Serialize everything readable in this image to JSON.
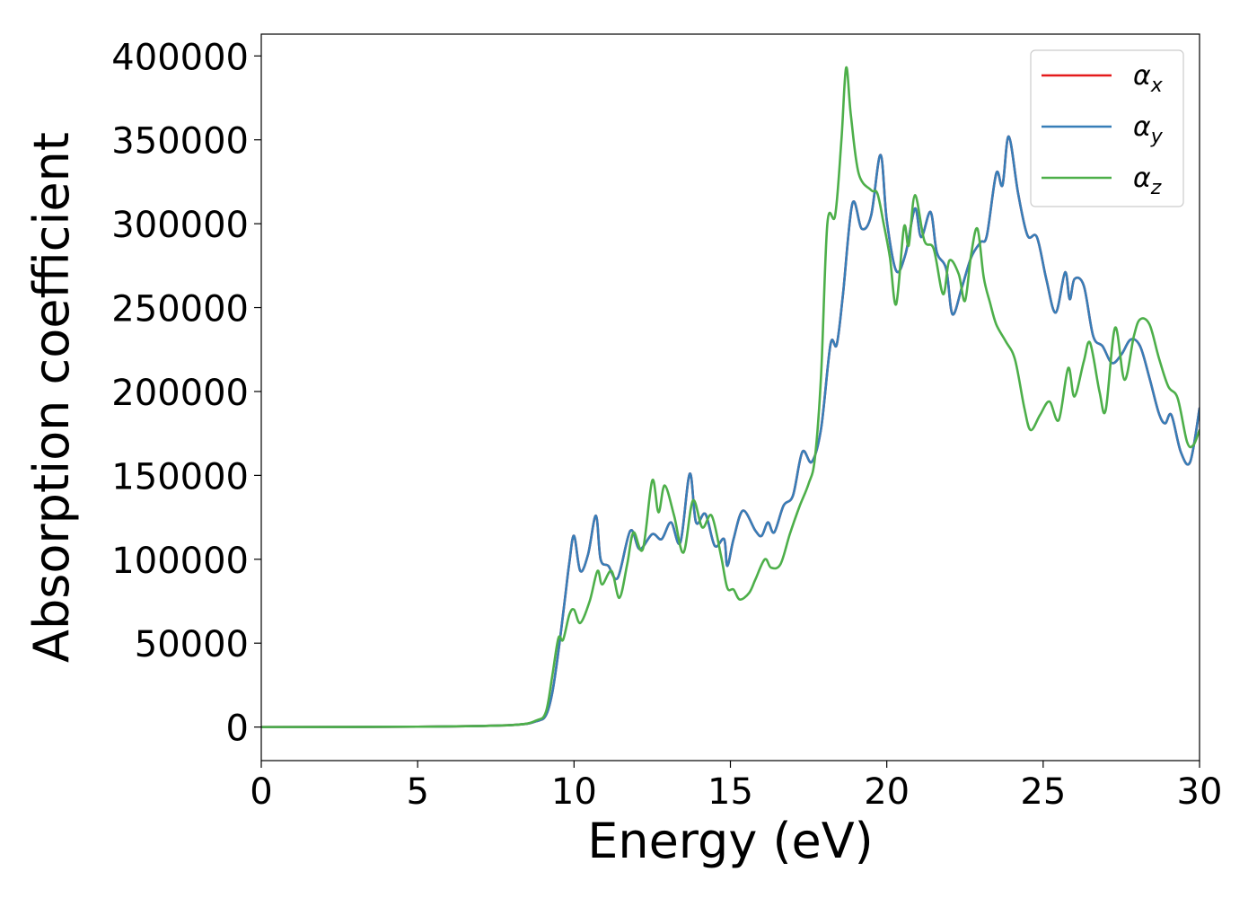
{
  "chart_data": {
    "type": "line",
    "xlabel": "Energy (eV)",
    "ylabel": "Absorption coefficient",
    "xlim": [
      0,
      30
    ],
    "ylim": [
      -20000,
      413000
    ],
    "xticks": [
      0,
      5,
      10,
      15,
      20,
      25,
      30
    ],
    "xtick_labels": [
      "0",
      "5",
      "10",
      "15",
      "20",
      "25",
      "30"
    ],
    "yticks": [
      0,
      50000,
      100000,
      150000,
      200000,
      250000,
      300000,
      350000,
      400000
    ],
    "ytick_labels": [
      "0",
      "50000",
      "100000",
      "150000",
      "200000",
      "250000",
      "300000",
      "350000",
      "400000"
    ],
    "grid": false,
    "legend_position": "top-right",
    "series": [
      {
        "name": "α_x",
        "legend_main": "α",
        "legend_sub": "x",
        "color": "#e41a1c",
        "points": [
          [
            0,
            0
          ],
          [
            5,
            200
          ],
          [
            8,
            1200
          ],
          [
            8.8,
            3500
          ],
          [
            9.1,
            7000
          ],
          [
            9.3,
            20000
          ],
          [
            9.5,
            45000
          ],
          [
            9.7,
            75000
          ],
          [
            9.85,
            98000
          ],
          [
            10.0,
            114000
          ],
          [
            10.2,
            93000
          ],
          [
            10.45,
            103000
          ],
          [
            10.7,
            126000
          ],
          [
            10.85,
            100000
          ],
          [
            11.1,
            96000
          ],
          [
            11.4,
            89000
          ],
          [
            11.8,
            117000
          ],
          [
            12.1,
            106000
          ],
          [
            12.5,
            115000
          ],
          [
            12.8,
            112000
          ],
          [
            13.1,
            122000
          ],
          [
            13.4,
            110000
          ],
          [
            13.7,
            151000
          ],
          [
            13.9,
            122000
          ],
          [
            14.2,
            127000
          ],
          [
            14.5,
            108000
          ],
          [
            14.8,
            112000
          ],
          [
            14.9,
            96000
          ],
          [
            15.1,
            112000
          ],
          [
            15.4,
            129000
          ],
          [
            15.8,
            117000
          ],
          [
            16.0,
            114000
          ],
          [
            16.2,
            122000
          ],
          [
            16.4,
            116000
          ],
          [
            16.7,
            132000
          ],
          [
            17.0,
            138000
          ],
          [
            17.3,
            164000
          ],
          [
            17.6,
            158000
          ],
          [
            17.9,
            178000
          ],
          [
            18.2,
            228000
          ],
          [
            18.4,
            228000
          ],
          [
            18.6,
            258000
          ],
          [
            18.9,
            312000
          ],
          [
            19.2,
            297000
          ],
          [
            19.5,
            305000
          ],
          [
            19.8,
            341000
          ],
          [
            20.0,
            302000
          ],
          [
            20.3,
            272000
          ],
          [
            20.6,
            282000
          ],
          [
            20.9,
            309000
          ],
          [
            21.1,
            292000
          ],
          [
            21.4,
            307000
          ],
          [
            21.6,
            283000
          ],
          [
            21.9,
            273000
          ],
          [
            22.1,
            246000
          ],
          [
            22.4,
            262000
          ],
          [
            22.7,
            280000
          ],
          [
            23.0,
            289000
          ],
          [
            23.2,
            293000
          ],
          [
            23.5,
            330000
          ],
          [
            23.7,
            323000
          ],
          [
            23.9,
            352000
          ],
          [
            24.2,
            318000
          ],
          [
            24.5,
            293000
          ],
          [
            24.8,
            292000
          ],
          [
            25.1,
            267000
          ],
          [
            25.4,
            247000
          ],
          [
            25.7,
            271000
          ],
          [
            25.85,
            255000
          ],
          [
            26.0,
            267000
          ],
          [
            26.3,
            263000
          ],
          [
            26.6,
            233000
          ],
          [
            26.9,
            227000
          ],
          [
            27.2,
            217000
          ],
          [
            27.5,
            222000
          ],
          [
            27.8,
            231000
          ],
          [
            28.1,
            227000
          ],
          [
            28.4,
            208000
          ],
          [
            28.7,
            187000
          ],
          [
            28.9,
            181000
          ],
          [
            29.1,
            186000
          ],
          [
            29.4,
            164000
          ],
          [
            29.7,
            158000
          ],
          [
            30.0,
            190000
          ]
        ]
      },
      {
        "name": "α_y",
        "legend_main": "α",
        "legend_sub": "y",
        "color": "#377eb8",
        "points": [
          [
            0,
            0
          ],
          [
            5,
            200
          ],
          [
            8,
            1200
          ],
          [
            8.8,
            3500
          ],
          [
            9.1,
            7000
          ],
          [
            9.3,
            20000
          ],
          [
            9.5,
            45000
          ],
          [
            9.7,
            75000
          ],
          [
            9.85,
            98000
          ],
          [
            10.0,
            114000
          ],
          [
            10.2,
            93000
          ],
          [
            10.45,
            103000
          ],
          [
            10.7,
            126000
          ],
          [
            10.85,
            100000
          ],
          [
            11.1,
            96000
          ],
          [
            11.4,
            89000
          ],
          [
            11.8,
            117000
          ],
          [
            12.1,
            106000
          ],
          [
            12.5,
            115000
          ],
          [
            12.8,
            112000
          ],
          [
            13.1,
            122000
          ],
          [
            13.4,
            110000
          ],
          [
            13.7,
            151000
          ],
          [
            13.9,
            122000
          ],
          [
            14.2,
            127000
          ],
          [
            14.5,
            108000
          ],
          [
            14.8,
            112000
          ],
          [
            14.9,
            96000
          ],
          [
            15.1,
            112000
          ],
          [
            15.4,
            129000
          ],
          [
            15.8,
            117000
          ],
          [
            16.0,
            114000
          ],
          [
            16.2,
            122000
          ],
          [
            16.4,
            116000
          ],
          [
            16.7,
            132000
          ],
          [
            17.0,
            138000
          ],
          [
            17.3,
            164000
          ],
          [
            17.6,
            158000
          ],
          [
            17.9,
            178000
          ],
          [
            18.2,
            228000
          ],
          [
            18.4,
            228000
          ],
          [
            18.6,
            258000
          ],
          [
            18.9,
            312000
          ],
          [
            19.2,
            297000
          ],
          [
            19.5,
            305000
          ],
          [
            19.8,
            341000
          ],
          [
            20.0,
            302000
          ],
          [
            20.3,
            272000
          ],
          [
            20.6,
            282000
          ],
          [
            20.9,
            309000
          ],
          [
            21.1,
            292000
          ],
          [
            21.4,
            307000
          ],
          [
            21.6,
            283000
          ],
          [
            21.9,
            273000
          ],
          [
            22.1,
            246000
          ],
          [
            22.4,
            262000
          ],
          [
            22.7,
            280000
          ],
          [
            23.0,
            289000
          ],
          [
            23.2,
            293000
          ],
          [
            23.5,
            330000
          ],
          [
            23.7,
            323000
          ],
          [
            23.9,
            352000
          ],
          [
            24.2,
            318000
          ],
          [
            24.5,
            293000
          ],
          [
            24.8,
            292000
          ],
          [
            25.1,
            267000
          ],
          [
            25.4,
            247000
          ],
          [
            25.7,
            271000
          ],
          [
            25.85,
            255000
          ],
          [
            26.0,
            267000
          ],
          [
            26.3,
            263000
          ],
          [
            26.6,
            233000
          ],
          [
            26.9,
            227000
          ],
          [
            27.2,
            217000
          ],
          [
            27.5,
            222000
          ],
          [
            27.8,
            231000
          ],
          [
            28.1,
            227000
          ],
          [
            28.4,
            208000
          ],
          [
            28.7,
            187000
          ],
          [
            28.9,
            181000
          ],
          [
            29.1,
            186000
          ],
          [
            29.4,
            164000
          ],
          [
            29.7,
            158000
          ],
          [
            30.0,
            190000
          ]
        ]
      },
      {
        "name": "α_z",
        "legend_main": "α",
        "legend_sub": "z",
        "color": "#4daf4a",
        "points": [
          [
            0,
            0
          ],
          [
            5,
            200
          ],
          [
            8,
            1200
          ],
          [
            8.8,
            4000
          ],
          [
            9.1,
            9000
          ],
          [
            9.3,
            30000
          ],
          [
            9.5,
            53000
          ],
          [
            9.65,
            52000
          ],
          [
            9.85,
            67000
          ],
          [
            10.0,
            70000
          ],
          [
            10.2,
            62000
          ],
          [
            10.5,
            75000
          ],
          [
            10.75,
            93000
          ],
          [
            10.9,
            85000
          ],
          [
            11.2,
            93000
          ],
          [
            11.45,
            77000
          ],
          [
            11.7,
            97000
          ],
          [
            11.9,
            116000
          ],
          [
            12.2,
            106000
          ],
          [
            12.5,
            147000
          ],
          [
            12.7,
            128000
          ],
          [
            12.9,
            144000
          ],
          [
            13.2,
            126000
          ],
          [
            13.5,
            104000
          ],
          [
            13.8,
            135000
          ],
          [
            14.1,
            119000
          ],
          [
            14.4,
            126000
          ],
          [
            14.7,
            102000
          ],
          [
            14.9,
            83000
          ],
          [
            15.1,
            82000
          ],
          [
            15.3,
            76000
          ],
          [
            15.6,
            80000
          ],
          [
            15.8,
            88000
          ],
          [
            16.1,
            100000
          ],
          [
            16.3,
            95000
          ],
          [
            16.6,
            97000
          ],
          [
            16.9,
            115000
          ],
          [
            17.2,
            131000
          ],
          [
            17.5,
            145000
          ],
          [
            17.7,
            160000
          ],
          [
            17.9,
            210000
          ],
          [
            18.1,
            300000
          ],
          [
            18.35,
            305000
          ],
          [
            18.55,
            350000
          ],
          [
            18.7,
            393000
          ],
          [
            18.85,
            365000
          ],
          [
            19.1,
            330000
          ],
          [
            19.5,
            320000
          ],
          [
            19.7,
            318000
          ],
          [
            19.9,
            300000
          ],
          [
            20.1,
            280000
          ],
          [
            20.3,
            252000
          ],
          [
            20.55,
            298000
          ],
          [
            20.7,
            287000
          ],
          [
            20.9,
            317000
          ],
          [
            21.2,
            290000
          ],
          [
            21.5,
            285000
          ],
          [
            21.8,
            258000
          ],
          [
            22.0,
            278000
          ],
          [
            22.3,
            270000
          ],
          [
            22.5,
            254000
          ],
          [
            22.7,
            282000
          ],
          [
            22.9,
            297000
          ],
          [
            23.1,
            268000
          ],
          [
            23.3,
            253000
          ],
          [
            23.5,
            240000
          ],
          [
            23.8,
            230000
          ],
          [
            24.1,
            219000
          ],
          [
            24.4,
            190000
          ],
          [
            24.6,
            177000
          ],
          [
            24.9,
            186000
          ],
          [
            25.2,
            194000
          ],
          [
            25.5,
            183000
          ],
          [
            25.8,
            214000
          ],
          [
            26.0,
            197000
          ],
          [
            26.3,
            218000
          ],
          [
            26.5,
            229000
          ],
          [
            26.8,
            200000
          ],
          [
            27.0,
            189000
          ],
          [
            27.3,
            238000
          ],
          [
            27.6,
            207000
          ],
          [
            27.9,
            233000
          ],
          [
            28.1,
            243000
          ],
          [
            28.4,
            240000
          ],
          [
            28.7,
            220000
          ],
          [
            29.0,
            203000
          ],
          [
            29.3,
            196000
          ],
          [
            29.6,
            170000
          ],
          [
            29.8,
            168000
          ],
          [
            30.0,
            177000
          ]
        ]
      }
    ]
  }
}
